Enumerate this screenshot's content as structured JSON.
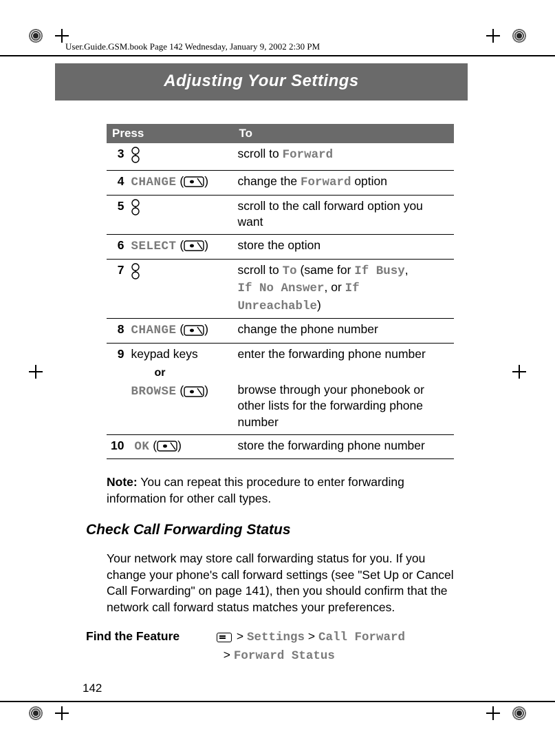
{
  "meta": {
    "running_header": "User.Guide.GSM.book  Page 142  Wednesday, January 9, 2002  2:30 PM",
    "banner": "Adjusting Your Settings",
    "page_number": "142"
  },
  "colors": {
    "banner_bg": "#6a6a6a",
    "banner_fg": "#ffffff",
    "mono_gray": "#7a7a7a",
    "rule": "#000000",
    "background": "#ffffff"
  },
  "table": {
    "head_press": "Press",
    "head_to": "To",
    "rows": [
      {
        "n": "3",
        "press_type": "scroll",
        "to_pre": "scroll to ",
        "to_mono": "Forward",
        "to_post": ""
      },
      {
        "n": "4",
        "press_type": "softkey",
        "press_label": "CHANGE",
        "to_pre": "change the ",
        "to_mono": "Forward",
        "to_post": " option"
      },
      {
        "n": "5",
        "press_type": "scroll",
        "to_pre": "scroll to the call forward option you want",
        "to_mono": "",
        "to_post": ""
      },
      {
        "n": "6",
        "press_type": "softkey",
        "press_label": "SELECT",
        "to_pre": "store the option",
        "to_mono": "",
        "to_post": ""
      },
      {
        "n": "7",
        "press_type": "scroll",
        "to_pre": "scroll to ",
        "to_mono": "To",
        "to_post": " (same for ",
        "to_mono2": "If Busy",
        "to_mid": ", ",
        "to_mono3": "If No Answer",
        "to_mid2": ", or ",
        "to_mono4": "If Unreachable",
        "to_end": ")"
      },
      {
        "n": "8",
        "press_type": "softkey",
        "press_label": "CHANGE",
        "to_pre": "change the phone number",
        "to_mono": "",
        "to_post": ""
      },
      {
        "n": "9",
        "press_type": "dual",
        "press_plain": "keypad keys",
        "or_label": "or",
        "press_label2": "BROWSE",
        "to_pre": "enter the forwarding phone number",
        "to2": "browse through your phonebook or other lists for the forwarding phone number"
      },
      {
        "n": "10",
        "press_type": "softkey_indent",
        "press_label": "OK",
        "to_pre": "store the forwarding phone number",
        "to_mono": "",
        "to_post": ""
      }
    ]
  },
  "note": {
    "label": "Note:",
    "text": " You can repeat this procedure to enter forwarding information for other call types."
  },
  "section": {
    "heading": "Check Call Forwarding Status",
    "body": "Your network may store call forwarding status for you. If you change your phone's call forward settings (see \"Set Up or Cancel Call Forwarding\" on page 141), then you should confirm that the network call forward status matches your preferences."
  },
  "find_feature": {
    "label": "Find the Feature",
    "sep": " > ",
    "p1": "Settings",
    "p2": "Call Forward",
    "p3": "Forward Status"
  }
}
